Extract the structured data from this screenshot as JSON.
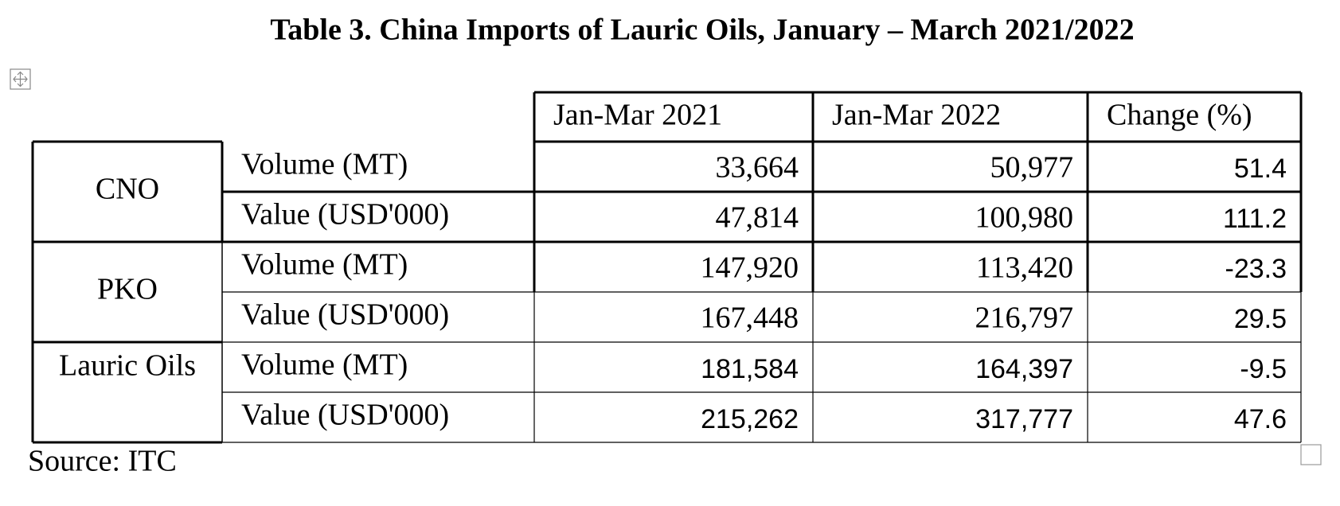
{
  "title": "Table 3. China Imports of Lauric Oils, January – March 2021/2022",
  "table": {
    "header": [
      "Jan-Mar 2021",
      "Jan-Mar 2022",
      "Change (%)"
    ],
    "groups": [
      {
        "label": "CNO",
        "rows": [
          {
            "metric": "Volume (MT)",
            "values": [
              "33,664",
              "50,977",
              "51.4"
            ]
          },
          {
            "metric": "Value (USD'000)",
            "values": [
              "47,814",
              "100,980",
              "111.2"
            ]
          }
        ]
      },
      {
        "label": "PKO",
        "rows": [
          {
            "metric": "Volume (MT)",
            "values": [
              "147,920",
              "113,420",
              "-23.3"
            ]
          },
          {
            "metric": "Value (USD'000)",
            "values": [
              "167,448",
              "216,797",
              "29.5"
            ]
          }
        ]
      },
      {
        "label": "Lauric Oils",
        "rows": [
          {
            "metric": "Volume (MT)",
            "values": [
              "181,584",
              "164,397",
              "-9.5"
            ]
          },
          {
            "metric": "Value (USD'000)",
            "values": [
              "215,262",
              "317,777",
              "47.6"
            ]
          }
        ]
      }
    ]
  },
  "source": "Source: ITC"
}
